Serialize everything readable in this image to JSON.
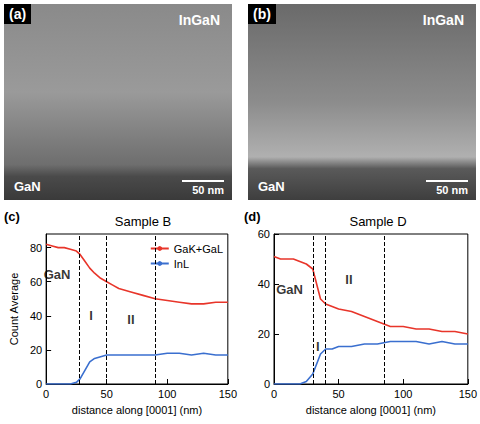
{
  "panels": [
    {
      "label": "(a)",
      "top_text": "InGaN",
      "bottom_text": "GaN",
      "scale_bar": "50 nm"
    },
    {
      "label": "(b)",
      "top_text": "InGaN",
      "bottom_text": "GaN",
      "scale_bar": "50 nm"
    }
  ],
  "chart_data": [
    {
      "type": "line",
      "panel_label": "(c)",
      "title": "Sample B",
      "x_label": "distance along [0001] (nm)",
      "y_label": "Count Average",
      "xlim": [
        0,
        150
      ],
      "xticks": [
        0,
        50,
        100,
        150
      ],
      "ylim": [
        0,
        88
      ],
      "yticks": [
        0,
        20,
        40,
        60,
        80
      ],
      "grid": false,
      "legend": "upper right",
      "vlines": [
        27,
        50,
        90
      ],
      "annotations": [
        {
          "text": "GaN",
          "x": 9,
          "y": 64
        },
        {
          "text": "I",
          "x": 37,
          "y": 40
        },
        {
          "text": "II",
          "x": 70,
          "y": 38
        }
      ],
      "series": [
        {
          "name": "GaK+GaL",
          "color": "#e8352a",
          "x": [
            0,
            5,
            10,
            15,
            20,
            25,
            28,
            32,
            36,
            40,
            45,
            50,
            55,
            60,
            70,
            80,
            90,
            100,
            110,
            120,
            130,
            140,
            150
          ],
          "values": [
            82,
            81,
            80,
            80,
            79,
            78,
            76,
            72,
            68,
            65,
            62,
            60,
            58,
            56,
            54,
            52,
            50,
            49,
            48,
            47,
            47,
            48,
            48
          ]
        },
        {
          "name": "InL",
          "color": "#3a6fcf",
          "x": [
            0,
            10,
            20,
            25,
            28,
            32,
            36,
            40,
            45,
            50,
            60,
            70,
            80,
            90,
            100,
            110,
            120,
            130,
            140,
            150
          ],
          "values": [
            0,
            0,
            0,
            1,
            3,
            8,
            13,
            15,
            16,
            17,
            17,
            17,
            17,
            17,
            18,
            18,
            17,
            18,
            17,
            17
          ]
        }
      ]
    },
    {
      "type": "line",
      "panel_label": "(d)",
      "title": "Sample D",
      "x_label": "distance along [0001] (nm)",
      "xlim": [
        0,
        150
      ],
      "xticks": [
        0,
        50,
        100,
        150
      ],
      "ylim": [
        0,
        60
      ],
      "yticks": [
        0,
        20,
        40,
        60
      ],
      "grid": false,
      "vlines": [
        30,
        40,
        85
      ],
      "annotations": [
        {
          "text": "GaN",
          "x": 12,
          "y": 38
        },
        {
          "text": "I",
          "x": 34,
          "y": 15
        },
        {
          "text": "II",
          "x": 58,
          "y": 42
        }
      ],
      "series": [
        {
          "color": "#e8352a",
          "x": [
            0,
            5,
            10,
            15,
            20,
            25,
            30,
            33,
            36,
            40,
            45,
            50,
            60,
            70,
            80,
            90,
            100,
            110,
            120,
            130,
            140,
            150
          ],
          "values": [
            51,
            50,
            50,
            50,
            49,
            48,
            46,
            40,
            34,
            32,
            31,
            30,
            29,
            27,
            25,
            23,
            23,
            22,
            22,
            21,
            21,
            20
          ]
        },
        {
          "color": "#3a6fcf",
          "x": [
            0,
            10,
            20,
            25,
            30,
            33,
            36,
            40,
            45,
            50,
            60,
            70,
            80,
            90,
            100,
            110,
            120,
            130,
            140,
            150
          ],
          "values": [
            0,
            0,
            0,
            1,
            4,
            8,
            12,
            14,
            14,
            15,
            15,
            16,
            16,
            17,
            17,
            17,
            16,
            17,
            16,
            16
          ]
        }
      ]
    }
  ]
}
